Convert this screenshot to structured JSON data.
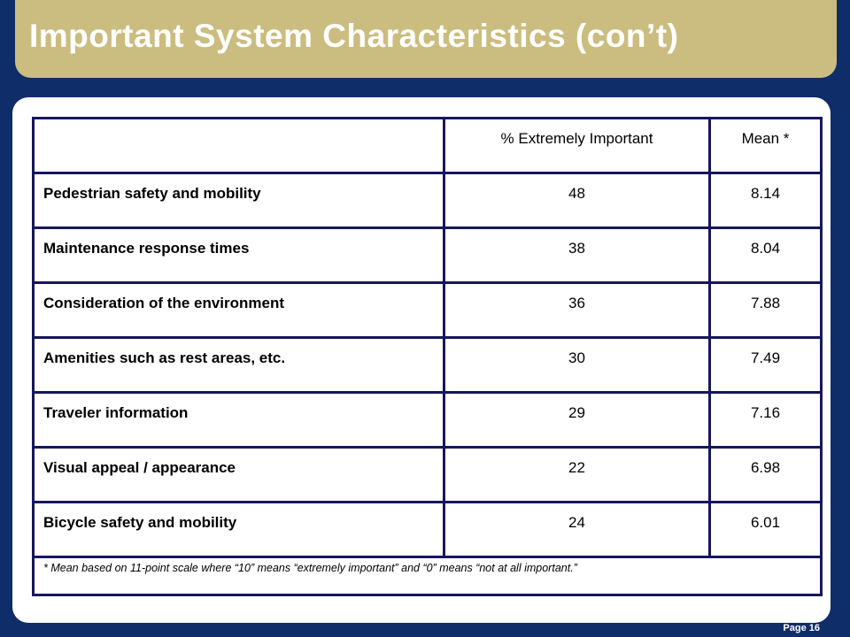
{
  "slide": {
    "title": "Important System Characteristics (con’t)",
    "page_label": "Page 16",
    "colors": {
      "background": "#0f2d68",
      "title_bar": "#cbbd7f",
      "table_border": "#16165e"
    }
  },
  "table": {
    "columns": [
      "",
      "% Extremely Important",
      "Mean *"
    ],
    "rows": [
      {
        "label": "Pedestrian safety and mobility",
        "pct": "48",
        "mean": "8.14"
      },
      {
        "label": "Maintenance response times",
        "pct": "38",
        "mean": "8.04"
      },
      {
        "label": "Consideration of the environment",
        "pct": "36",
        "mean": "7.88"
      },
      {
        "label": "Amenities such as rest areas, etc.",
        "pct": "30",
        "mean": "7.49"
      },
      {
        "label": "Traveler information",
        "pct": "29",
        "mean": "7.16"
      },
      {
        "label": "Visual appeal / appearance",
        "pct": "22",
        "mean": "6.98"
      },
      {
        "label": "Bicycle safety and mobility",
        "pct": "24",
        "mean": "6.01"
      }
    ],
    "footnote": "* Mean based on 11-point scale where “10” means “extremely important” and “0” means “not at all important.”"
  }
}
